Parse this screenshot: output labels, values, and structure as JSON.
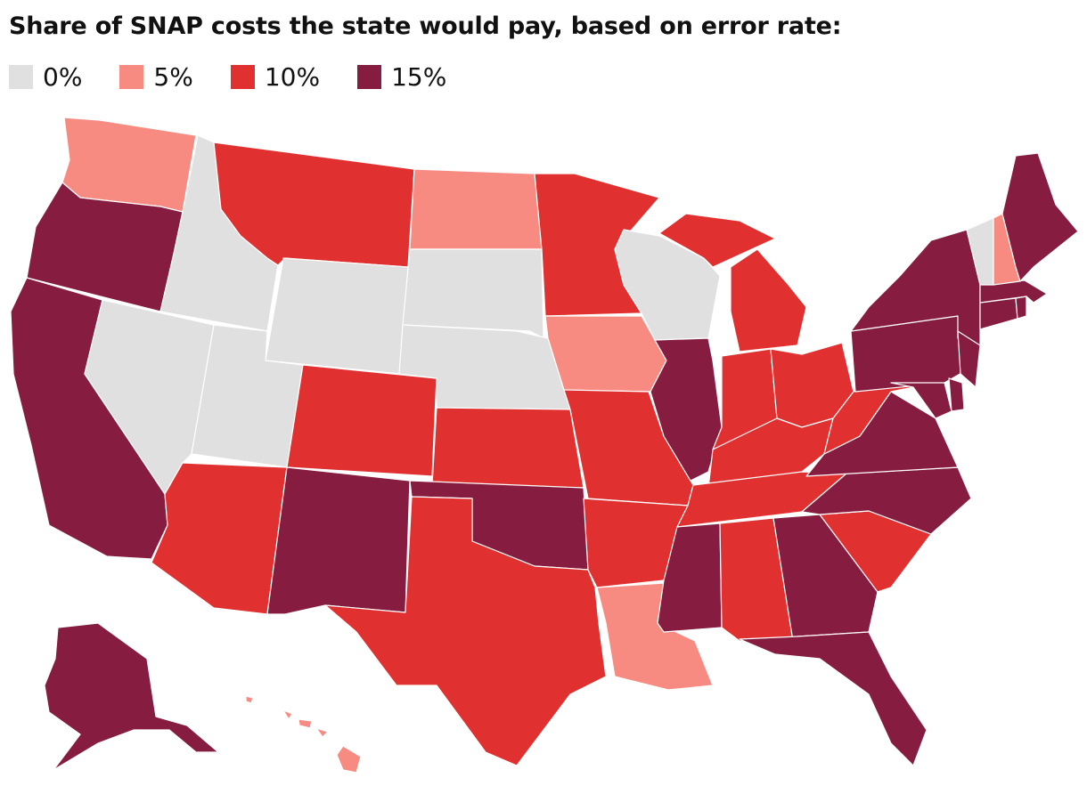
{
  "title": "Share of SNAP costs the state would pay, based on error rate:",
  "legend": [
    {
      "label": "0%",
      "color": "#e0e0e0"
    },
    {
      "label": "5%",
      "color": "#f78b82"
    },
    {
      "label": "10%",
      "color": "#e0302f"
    },
    {
      "label": "15%",
      "color": "#861c3f"
    }
  ],
  "states": {
    "WA": "5%",
    "OR": "15%",
    "CA": "15%",
    "ID": "0%",
    "NV": "0%",
    "UT": "0%",
    "AZ": "10%",
    "MT": "10%",
    "WY": "0%",
    "CO": "10%",
    "NM": "15%",
    "ND": "5%",
    "SD": "0%",
    "NE": "0%",
    "KS": "10%",
    "OK": "15%",
    "TX": "10%",
    "MN": "10%",
    "IA": "5%",
    "MO": "10%",
    "AR": "10%",
    "LA": "5%",
    "WI": "0%",
    "IL": "15%",
    "MI": "10%",
    "IN": "10%",
    "OH": "10%",
    "KY": "10%",
    "TN": "10%",
    "MS": "15%",
    "AL": "10%",
    "GA": "15%",
    "FL": "15%",
    "SC": "10%",
    "NC": "15%",
    "VA": "15%",
    "WV": "10%",
    "PA": "15%",
    "NY": "15%",
    "VT": "0%",
    "NH": "5%",
    "ME": "15%",
    "MA": "15%",
    "CT": "15%",
    "RI": "15%",
    "NJ": "15%",
    "DE": "15%",
    "MD": "15%",
    "AK": "15%",
    "HI": "5%"
  }
}
